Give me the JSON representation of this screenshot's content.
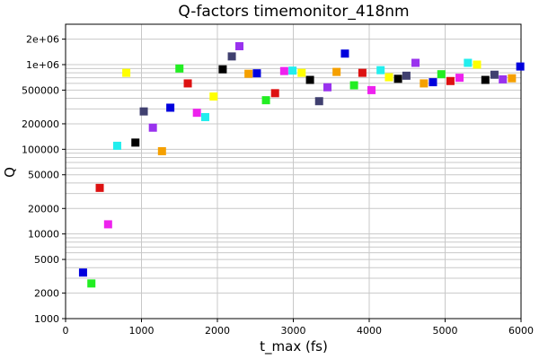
{
  "chart_data": {
    "type": "scatter",
    "title": "Q-factors timemonitor_418nm",
    "xlabel": "t_max (fs)",
    "ylabel": "Q",
    "xlim": [
      0,
      6000
    ],
    "ylim": [
      1000,
      3000000
    ],
    "yscale": "log",
    "grid": true,
    "x_ticks": [
      0,
      1000,
      2000,
      3000,
      4000,
      5000,
      6000
    ],
    "x_tick_labels": [
      "0",
      "1000",
      "2000",
      "3000",
      "4000",
      "5000",
      "6000"
    ],
    "y_ticks": [
      1000,
      2000,
      5000,
      10000,
      20000,
      50000,
      100000,
      200000,
      500000,
      1000000,
      2000000
    ],
    "y_tick_labels": [
      "1000",
      "2000",
      "5000",
      "10000",
      "20000",
      "50000",
      "100000",
      "200000",
      "500000",
      "1e+06",
      "2e+06"
    ],
    "points": [
      {
        "x": 230,
        "y": 3500,
        "color": "#0000dd"
      },
      {
        "x": 340,
        "y": 2600,
        "color": "#22ee22"
      },
      {
        "x": 450,
        "y": 35000,
        "color": "#dd1111"
      },
      {
        "x": 560,
        "y": 13000,
        "color": "#ee22ee"
      },
      {
        "x": 680,
        "y": 110000,
        "color": "#22eeee"
      },
      {
        "x": 800,
        "y": 800000,
        "color": "#ffff00"
      },
      {
        "x": 920,
        "y": 120000,
        "color": "#000000"
      },
      {
        "x": 1030,
        "y": 280000,
        "color": "#404070"
      },
      {
        "x": 1150,
        "y": 180000,
        "color": "#9932ee"
      },
      {
        "x": 1270,
        "y": 95000,
        "color": "#f5a000"
      },
      {
        "x": 1380,
        "y": 310000,
        "color": "#0000dd"
      },
      {
        "x": 1500,
        "y": 900000,
        "color": "#22ee22"
      },
      {
        "x": 1610,
        "y": 600000,
        "color": "#dd1111"
      },
      {
        "x": 1730,
        "y": 270000,
        "color": "#ee22ee"
      },
      {
        "x": 1840,
        "y": 240000,
        "color": "#22eeee"
      },
      {
        "x": 1950,
        "y": 420000,
        "color": "#ffff00"
      },
      {
        "x": 2070,
        "y": 880000,
        "color": "#000000"
      },
      {
        "x": 2190,
        "y": 1250000,
        "color": "#404070"
      },
      {
        "x": 2290,
        "y": 1650000,
        "color": "#9932ee"
      },
      {
        "x": 2410,
        "y": 780000,
        "color": "#f5a000"
      },
      {
        "x": 2520,
        "y": 790000,
        "color": "#0000dd"
      },
      {
        "x": 2640,
        "y": 380000,
        "color": "#22ee22"
      },
      {
        "x": 2760,
        "y": 460000,
        "color": "#dd1111"
      },
      {
        "x": 2880,
        "y": 840000,
        "color": "#ee22ee"
      },
      {
        "x": 2990,
        "y": 850000,
        "color": "#22eeee"
      },
      {
        "x": 3110,
        "y": 800000,
        "color": "#ffff00"
      },
      {
        "x": 3220,
        "y": 660000,
        "color": "#000000"
      },
      {
        "x": 3340,
        "y": 370000,
        "color": "#404070"
      },
      {
        "x": 3450,
        "y": 540000,
        "color": "#9932ee"
      },
      {
        "x": 3570,
        "y": 820000,
        "color": "#f5a000"
      },
      {
        "x": 3680,
        "y": 1350000,
        "color": "#0000dd"
      },
      {
        "x": 3800,
        "y": 570000,
        "color": "#22ee22"
      },
      {
        "x": 3910,
        "y": 800000,
        "color": "#dd1111"
      },
      {
        "x": 4030,
        "y": 500000,
        "color": "#ee22ee"
      },
      {
        "x": 4150,
        "y": 860000,
        "color": "#22eeee"
      },
      {
        "x": 4260,
        "y": 710000,
        "color": "#ffff00"
      },
      {
        "x": 4380,
        "y": 680000,
        "color": "#000000"
      },
      {
        "x": 4490,
        "y": 740000,
        "color": "#404070"
      },
      {
        "x": 4610,
        "y": 1050000,
        "color": "#9932ee"
      },
      {
        "x": 4720,
        "y": 600000,
        "color": "#f5a000"
      },
      {
        "x": 4840,
        "y": 620000,
        "color": "#0000dd"
      },
      {
        "x": 4950,
        "y": 770000,
        "color": "#22ee22"
      },
      {
        "x": 5070,
        "y": 640000,
        "color": "#dd1111"
      },
      {
        "x": 5190,
        "y": 700000,
        "color": "#ee22ee"
      },
      {
        "x": 5300,
        "y": 1050000,
        "color": "#22eeee"
      },
      {
        "x": 5420,
        "y": 1000000,
        "color": "#ffff00"
      },
      {
        "x": 5530,
        "y": 660000,
        "color": "#000000"
      },
      {
        "x": 5650,
        "y": 760000,
        "color": "#404070"
      },
      {
        "x": 5760,
        "y": 670000,
        "color": "#9932ee"
      },
      {
        "x": 5880,
        "y": 690000,
        "color": "#f5a000"
      },
      {
        "x": 5990,
        "y": 950000,
        "color": "#0000dd"
      }
    ]
  }
}
